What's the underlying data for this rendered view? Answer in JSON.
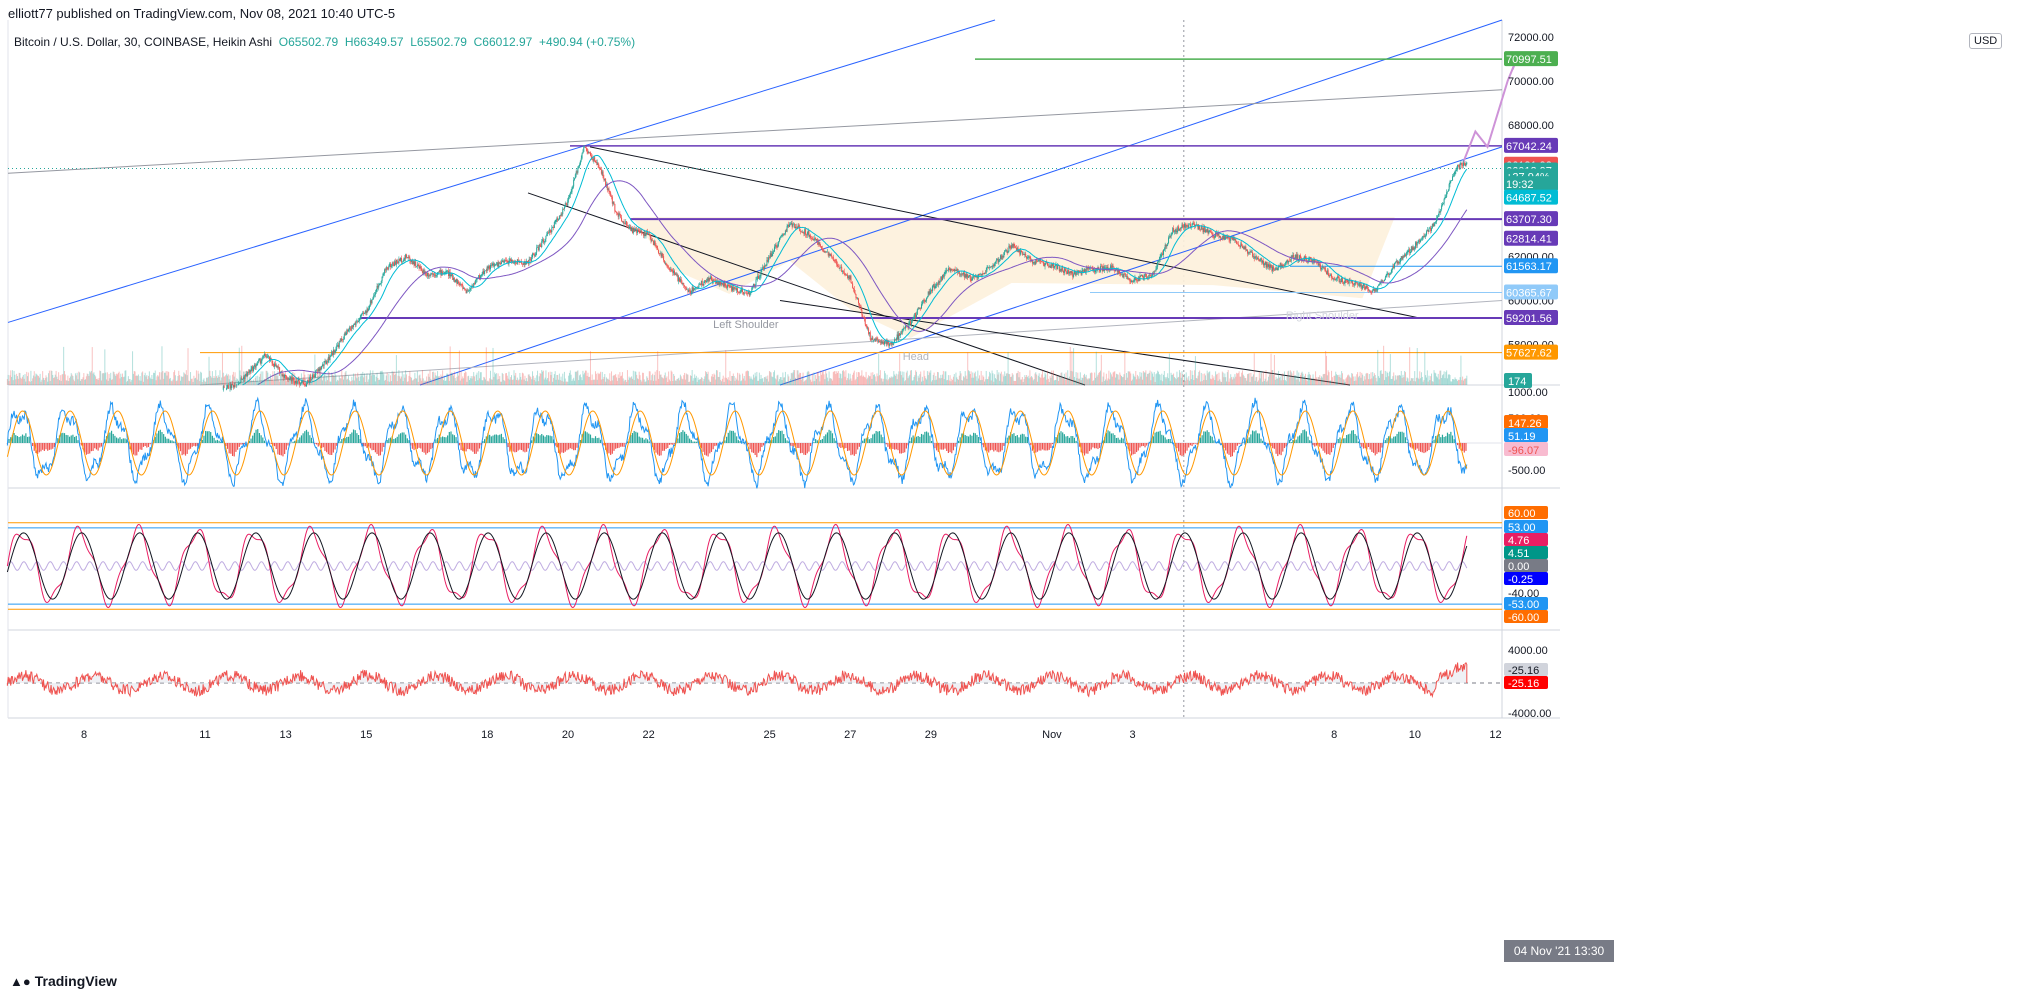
{
  "header": {
    "published": "elliott77 published on TradingView.com, Nov 08, 2021 10:40 UTC-5",
    "symbol": "Bitcoin / U.S. Dollar, 30, COINBASE, Heikin Ashi",
    "open": "O65502.79",
    "high": "H66349.57",
    "low": "L65502.79",
    "close": "C66012.97",
    "change": "+490.94 (+0.75%)",
    "currency": "USD"
  },
  "footer": {
    "logo": "TradingView",
    "crosshair_date": "04 Nov '21  13:30"
  },
  "colors": {
    "up": "#26a69a",
    "down": "#ef5350",
    "channel_blue": "#2962ff",
    "purple_level": "#673ab7",
    "green_target": "#4caf50",
    "orange_level": "#ff9800",
    "projection": "#ce93d8",
    "neckline_zone": "#fdf1dc",
    "grid": "#f0f3fa"
  },
  "chart_data": [
    {
      "type": "candlestick",
      "title": "Bitcoin / U.S. Dollar, 30, COINBASE, Heikin Ashi",
      "x_ticks": [
        "8",
        "11",
        "13",
        "15",
        "18",
        "20",
        "22",
        "25",
        "27",
        "29",
        "Nov",
        "3",
        "4 Nov '21 13:30",
        "8",
        "10",
        "12"
      ],
      "x_tick_labels": [
        "8",
        "11",
        "13",
        "15",
        "18",
        "20",
        "22",
        "25",
        "27",
        "29",
        "Nov",
        "3",
        "8",
        "10",
        "12"
      ],
      "xlim_days": [
        6.1,
        43.0
      ],
      "ylim": [
        55500,
        73200
      ],
      "y_ticks": [
        58000,
        60000,
        62000,
        68000,
        70000,
        72000
      ],
      "y_tick_labels": [
        "58000.00",
        "60000.00",
        "62000.00",
        "68000.00",
        "70000.00",
        "72000.00"
      ],
      "price_path_days": [
        6.1,
        7.0,
        8.0,
        9.0,
        10.0,
        11.0,
        11.8,
        12.5,
        13.0,
        13.5,
        14.0,
        14.5,
        15.0,
        15.5,
        16.0,
        16.5,
        17.0,
        17.5,
        18.0,
        18.5,
        19.0,
        19.5,
        20.0,
        20.4,
        20.8,
        21.2,
        21.6,
        22.0,
        22.5,
        23.0,
        23.5,
        24.0,
        24.5,
        25.0,
        25.5,
        26.0,
        26.5,
        27.0,
        27.5,
        28.0,
        28.5,
        29.0,
        29.5,
        30.0,
        30.5,
        31.0,
        31.5,
        32.0,
        32.5,
        33.0,
        33.5,
        34.0,
        34.5,
        35.0,
        35.5,
        36.0,
        36.5,
        37.0,
        37.5,
        38.0,
        38.5,
        39.0,
        39.5,
        40.0,
        40.5,
        41.0,
        41.5,
        42.0,
        42.3
      ],
      "price_path": [
        55000,
        55100,
        55200,
        55300,
        55500,
        55700,
        56200,
        57500,
        56500,
        56200,
        57200,
        58500,
        59500,
        61500,
        62000,
        61200,
        61300,
        60400,
        61500,
        61800,
        61700,
        63000,
        64500,
        67000,
        66000,
        64000,
        63200,
        63000,
        61500,
        60400,
        61000,
        60600,
        60300,
        62000,
        63500,
        63000,
        62000,
        61000,
        58300,
        58000,
        59000,
        60500,
        61500,
        61000,
        61500,
        62500,
        61800,
        61600,
        61200,
        61400,
        61500,
        60900,
        61200,
        63200,
        63500,
        63000,
        62800,
        62000,
        61400,
        62000,
        61800,
        61000,
        60800,
        60400,
        61600,
        62500,
        63500,
        66000,
        66300
      ],
      "volume_label": "174",
      "price_labels": [
        {
          "value": "70997.51",
          "price": 70997.51,
          "color": "#4caf50"
        },
        {
          "value": "67042.24",
          "price": 67042.24,
          "color": "#673ab7"
        },
        {
          "value": "66181.92",
          "price": 66181.92,
          "color": "#ef5350"
        },
        {
          "value": "66012.97",
          "price": 66012.97,
          "color": "#26a69a"
        },
        {
          "value": "+27.94%",
          "price": 65650,
          "color": "#26a69a"
        },
        {
          "value": "19:32",
          "price": 65300,
          "color": "#26a69a"
        },
        {
          "value": "64687.52",
          "price": 64687.52,
          "color": "#00bcd4"
        },
        {
          "value": "63707.30",
          "price": 63707.3,
          "color": "#673ab7"
        },
        {
          "value": "62814.41",
          "price": 62814.41,
          "color": "#673ab7"
        },
        {
          "value": "61563.17",
          "price": 61563.17,
          "color": "#2196f3"
        },
        {
          "value": "60365.67",
          "price": 60365.67,
          "color": "#90caf9"
        },
        {
          "value": "59201.56",
          "price": 59201.56,
          "color": "#673ab7"
        },
        {
          "value": "57627.62",
          "price": 57627.62,
          "color": "#ff9800"
        }
      ],
      "annotations": [
        "Left Shoulder",
        "Head",
        "Right Shoulder"
      ]
    },
    {
      "type": "histogram",
      "title": "Oscillator panel 1",
      "ylim": [
        -1000,
        1000
      ],
      "y_tick_labels": [
        "1000.00",
        "500.00",
        "-500.00"
      ],
      "value_labels": [
        {
          "value": "147.26",
          "color": "#ff6d00"
        },
        {
          "value": "51.19",
          "color": "#2196f3"
        },
        {
          "value": "-96.07",
          "color": "#f8bbd0"
        }
      ]
    },
    {
      "type": "line",
      "title": "Oscillator panel 2",
      "ylim": [
        -65,
        65
      ],
      "y_tick_labels": [
        "60.00",
        "53.00",
        "-40.00",
        "-60.00"
      ],
      "value_labels": [
        {
          "value": "60.00",
          "color": "#ff6d00"
        },
        {
          "value": "53.00",
          "color": "#2196f3"
        },
        {
          "value": "4.76",
          "color": "#e91e63"
        },
        {
          "value": "4.51",
          "color": "#009688"
        },
        {
          "value": "0.00",
          "color": "#787b86"
        },
        {
          "value": "-0.25",
          "color": "#0000ff"
        },
        {
          "value": "-53.00",
          "color": "#2196f3"
        },
        {
          "value": "-60.00",
          "color": "#ff6d00"
        }
      ]
    },
    {
      "type": "area",
      "title": "Oscillator panel 3",
      "ylim": [
        -4000,
        4000
      ],
      "y_tick_labels": [
        "4000.00",
        "-4000.00"
      ],
      "value_labels": [
        {
          "value": "-25.16",
          "color": "#d1d4dc"
        },
        {
          "value": "-25.16",
          "color": "#ff0000"
        }
      ]
    }
  ]
}
